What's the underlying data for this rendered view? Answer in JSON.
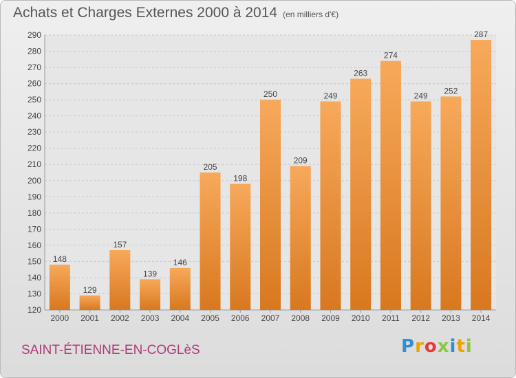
{
  "header": {
    "title": "Achats et Charges Externes 2000 à 2014",
    "unit_note": "(en milliers d'€)"
  },
  "footer": {
    "place_name": "SAINT-ÉTIENNE-EN-COGLèS",
    "logo_letters": [
      {
        "char": "P",
        "color": "#2f8fd4"
      },
      {
        "char": "r",
        "color": "#f0a300"
      },
      {
        "char": "o",
        "color": "#e53a3a"
      },
      {
        "char": "x",
        "color": "#8cc63f"
      },
      {
        "char": "i",
        "color": "#2f8fd4"
      },
      {
        "char": "t",
        "color": "#f0a300"
      },
      {
        "char": "i",
        "color": "#8cc63f"
      }
    ]
  },
  "colors": {
    "bar_light": "#f7a95a",
    "bar_dark": "#d8781f",
    "grid": "#c9c9c9",
    "axis_text": "#444444"
  },
  "chart_data": {
    "type": "bar",
    "title": "Achats et Charges Externes 2000 à 2014",
    "subtitle": "(en milliers d'€)",
    "categories": [
      "2000",
      "2001",
      "2002",
      "2003",
      "2004",
      "2005",
      "2006",
      "2007",
      "2008",
      "2009",
      "2010",
      "2011",
      "2012",
      "2013",
      "2014"
    ],
    "values": [
      148,
      129,
      157,
      139,
      146,
      205,
      198,
      250,
      209,
      249,
      263,
      274,
      249,
      252,
      287
    ],
    "ylim": [
      120,
      290
    ],
    "ytick_step": 10,
    "grid": true,
    "data_labels": true
  }
}
